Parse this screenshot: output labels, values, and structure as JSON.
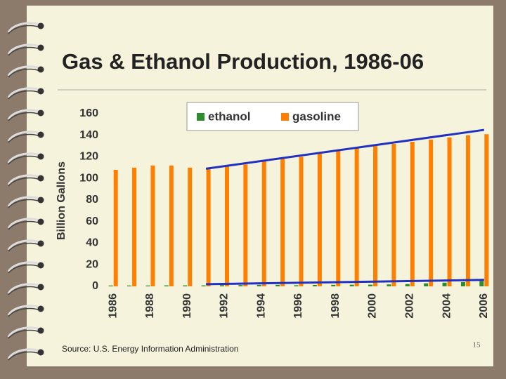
{
  "chart_data": {
    "type": "bar",
    "title": "Gas & Ethanol Production, 1986-06",
    "y_label": "Billion Gallons",
    "source": "Source: U.S. Energy Information Administration",
    "page_number": "15",
    "x": [
      1986,
      1987,
      1988,
      1989,
      1990,
      1991,
      1992,
      1993,
      1994,
      1995,
      1996,
      1997,
      1998,
      1999,
      2000,
      2001,
      2002,
      2003,
      2004,
      2005,
      2006
    ],
    "xlim": [
      1985.5,
      2006.5
    ],
    "xticks": [
      1986,
      1988,
      1990,
      1992,
      1994,
      1996,
      1998,
      2000,
      2002,
      2004,
      2006
    ],
    "ylim": [
      0,
      160
    ],
    "yticks": [
      0,
      20,
      40,
      60,
      80,
      100,
      120,
      140,
      160
    ],
    "legend": "top-right",
    "series": [
      {
        "name": "ethanol",
        "color": "#2e8b2e",
        "values": [
          0.8,
          0.8,
          0.8,
          0.9,
          0.9,
          0.9,
          1.1,
          1.2,
          1.4,
          1.4,
          1.0,
          1.3,
          1.4,
          1.5,
          1.6,
          1.8,
          2.1,
          2.8,
          3.4,
          3.9,
          4.9
        ]
      },
      {
        "name": "gasoline",
        "color": "#ff7f00",
        "values": [
          108,
          110,
          112,
          112,
          110,
          109,
          111,
          113,
          116,
          118,
          120,
          123,
          126,
          128,
          130,
          132,
          134,
          136,
          138,
          140,
          141
        ]
      }
    ],
    "trend_lines": [
      {
        "color": "#2030c0",
        "x": [
          1991,
          2006
        ],
        "y": [
          109,
          145
        ]
      },
      {
        "color": "#2030c0",
        "x": [
          1991,
          2006
        ],
        "y": [
          2,
          6
        ]
      }
    ]
  }
}
